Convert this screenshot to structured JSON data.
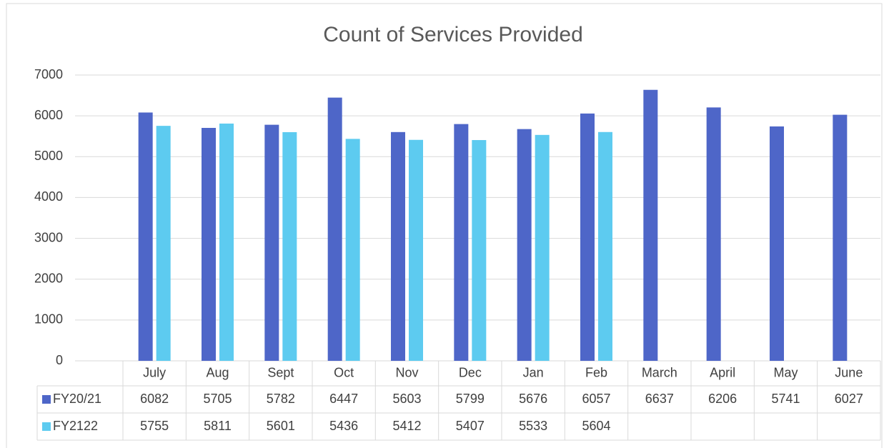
{
  "chart_data": {
    "type": "bar",
    "title": "Count of Services Provided",
    "categories": [
      "July",
      "Aug",
      "Sept",
      "Oct",
      "Nov",
      "Dec",
      "Jan",
      "Feb",
      "March",
      "April",
      "May",
      "June"
    ],
    "series": [
      {
        "name": "FY20/21",
        "color": "#4e66c8",
        "values": [
          6082,
          5705,
          5782,
          6447,
          5603,
          5799,
          5676,
          6057,
          6637,
          6206,
          5741,
          6027
        ]
      },
      {
        "name": "FY2122",
        "color": "#5dcbf0",
        "values": [
          5755,
          5811,
          5601,
          5436,
          5412,
          5407,
          5533,
          5604,
          null,
          null,
          null,
          null
        ]
      }
    ],
    "ylim": [
      0,
      7000
    ],
    "yticks": [
      0,
      1000,
      2000,
      3000,
      4000,
      5000,
      6000,
      7000
    ],
    "grid": true,
    "data_table": true
  }
}
